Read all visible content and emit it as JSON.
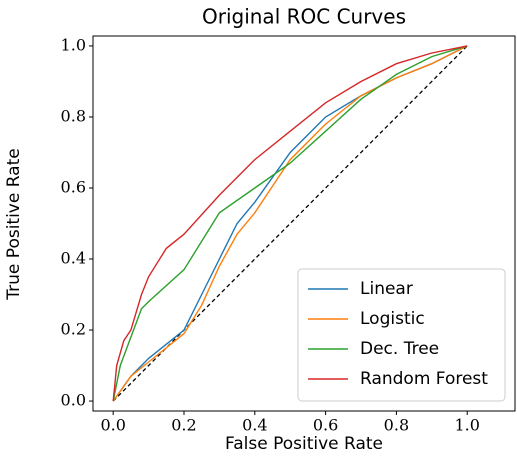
{
  "chart_data": {
    "type": "line",
    "title": "Original ROC Curves",
    "x_label": "False Positive Rate",
    "y_label": "True Positive Rate",
    "xlim": [
      -0.057,
      1.135
    ],
    "ylim": [
      -0.028,
      1.028
    ],
    "xticks": [
      {
        "value": 0,
        "label": "0.0"
      },
      0.2,
      0.4,
      0.6,
      0.8,
      {
        "value": 1,
        "label": "1.0"
      }
    ],
    "yticks": [
      {
        "value": 0,
        "label": "0.0"
      },
      0.2,
      0.4,
      0.6,
      0.8,
      {
        "value": 1,
        "label": "1.0"
      }
    ],
    "legend": "lower right",
    "series": [
      {
        "name": "Linear",
        "color": "#1f77b4",
        "x": [
          0,
          0.05,
          0.1,
          0.2,
          0.25,
          0.3,
          0.35,
          0.4,
          0.5,
          0.6,
          0.7,
          0.8,
          0.9,
          1
        ],
        "values": [
          0,
          0.07,
          0.12,
          0.2,
          0.3,
          0.4,
          0.5,
          0.56,
          0.7,
          0.8,
          0.86,
          0.91,
          0.95,
          1
        ]
      },
      {
        "name": "Logistic",
        "color": "#ff7f0e",
        "x": [
          0,
          0.05,
          0.1,
          0.2,
          0.25,
          0.3,
          0.35,
          0.4,
          0.5,
          0.6,
          0.7,
          0.8,
          0.9,
          1
        ],
        "values": [
          0,
          0.07,
          0.11,
          0.19,
          0.27,
          0.38,
          0.47,
          0.53,
          0.68,
          0.78,
          0.86,
          0.91,
          0.95,
          1
        ]
      },
      {
        "name": "Dec. Tree",
        "color": "#2ca02c",
        "x": [
          0,
          0.02,
          0.05,
          0.08,
          0.1,
          0.2,
          0.3,
          0.4,
          0.5,
          0.6,
          0.7,
          0.8,
          0.9,
          1
        ],
        "values": [
          0,
          0.1,
          0.18,
          0.26,
          0.28,
          0.37,
          0.53,
          0.6,
          0.67,
          0.76,
          0.85,
          0.92,
          0.97,
          1
        ]
      },
      {
        "name": "Random Forest",
        "color": "#d62728",
        "x": [
          0,
          0.01,
          0.03,
          0.05,
          0.08,
          0.1,
          0.15,
          0.2,
          0.3,
          0.4,
          0.5,
          0.6,
          0.7,
          0.8,
          0.9,
          1
        ],
        "values": [
          0,
          0.1,
          0.17,
          0.2,
          0.3,
          0.35,
          0.43,
          0.47,
          0.58,
          0.68,
          0.76,
          0.84,
          0.9,
          0.95,
          0.98,
          1
        ]
      }
    ],
    "diagonal": {
      "x": [
        0,
        1
      ],
      "values": [
        0,
        1
      ],
      "color": "#000000"
    }
  }
}
